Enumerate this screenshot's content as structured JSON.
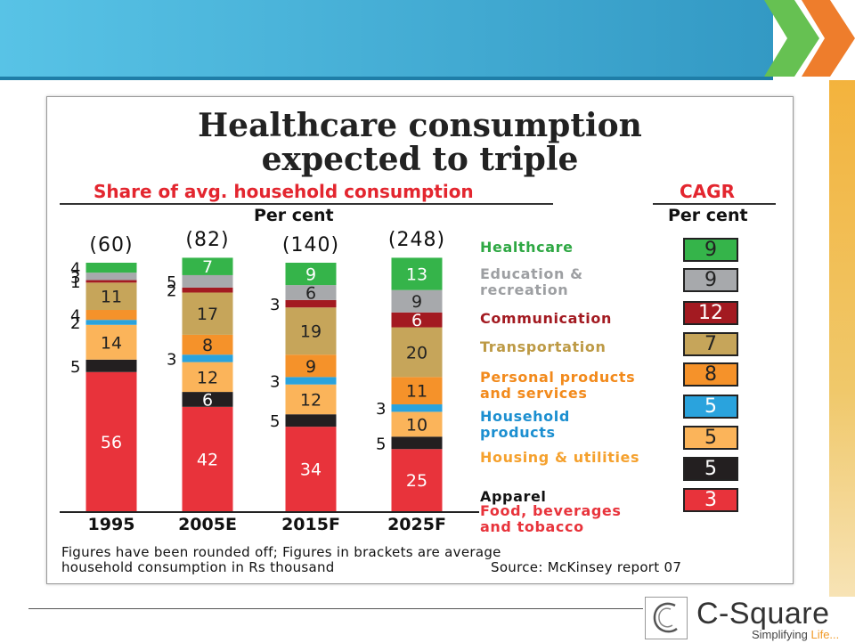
{
  "slide": {
    "logo": {
      "name": "C-Square",
      "tagline_main": "Simplifying ",
      "tagline_accent": "Life..."
    }
  },
  "chart_data": {
    "type": "bar",
    "title_line1": "Healthcare consumption",
    "title_line2": "expected to triple",
    "subtitle": "Share of avg. household consumption",
    "unit": "Per cent",
    "cagr_header": "CAGR",
    "cagr_unit": "Per cent",
    "categories": [
      "1995",
      "2005E",
      "2015F",
      "2025F"
    ],
    "totals": [
      "(60)",
      "(82)",
      "(140)",
      "(248)"
    ],
    "series": [
      {
        "name": "Food, beverages and tobacco",
        "label_lines": [
          "Food, beverages",
          "and tobacco"
        ],
        "values": [
          56,
          42,
          34,
          25
        ],
        "color": "#e8333b",
        "label_color": "#e8333b",
        "text_color": "#ffffff",
        "cagr": 3,
        "cagr_text_color": "#ffffff"
      },
      {
        "name": "Apparel",
        "label_lines": [
          "Apparel"
        ],
        "values": [
          5,
          6,
          5,
          5
        ],
        "color": "#231f20",
        "label_color": "#111111",
        "text_color": "#ffffff",
        "cagr": 5,
        "cagr_text_color": "#ffffff"
      },
      {
        "name": "Housing & utilities",
        "label_lines": [
          "Housing & utilities"
        ],
        "values": [
          14,
          12,
          12,
          10
        ],
        "color": "#fbb45a",
        "label_color": "#f5a12e",
        "text_color": "#222222",
        "cagr": 5,
        "cagr_text_color": "#222222"
      },
      {
        "name": "Household products",
        "label_lines": [
          "Household",
          "products"
        ],
        "values": [
          2,
          3,
          3,
          3
        ],
        "color": "#2aa3dd",
        "label_color": "#1c8fd0",
        "text_color": "#222222",
        "cagr": 5,
        "cagr_text_color": "#ffffff"
      },
      {
        "name": "Personal products and services",
        "label_lines": [
          "Personal products",
          "and services"
        ],
        "values": [
          4,
          8,
          9,
          11
        ],
        "color": "#f5922a",
        "label_color": "#f28a1c",
        "text_color": "#222222",
        "cagr": 8,
        "cagr_text_color": "#222222"
      },
      {
        "name": "Transportation",
        "label_lines": [
          "Transportation"
        ],
        "values": [
          11,
          17,
          19,
          20
        ],
        "color": "#c6a55a",
        "label_color": "#bd9a45",
        "text_color": "#222222",
        "cagr": 7,
        "cagr_text_color": "#222222"
      },
      {
        "name": "Communication",
        "label_lines": [
          "Communication"
        ],
        "values": [
          1,
          2,
          3,
          6
        ],
        "color": "#a31a21",
        "label_color": "#a31a21",
        "text_color": "#ffffff",
        "cagr": 12,
        "cagr_text_color": "#ffffff"
      },
      {
        "name": "Education & recreation",
        "label_lines": [
          "Education &",
          "recreation"
        ],
        "values": [
          3,
          5,
          6,
          9
        ],
        "color": "#a7a9ac",
        "label_color": "#9d9fa2",
        "text_color": "#222222",
        "cagr": 9,
        "cagr_text_color": "#222222"
      },
      {
        "name": "Healthcare",
        "label_lines": [
          "Healthcare"
        ],
        "values": [
          4,
          7,
          9,
          13
        ],
        "color": "#35b44a",
        "label_color": "#2fa844",
        "text_color": "#ffffff",
        "cagr": 9,
        "cagr_text_color": "#222222"
      }
    ],
    "footnote_line1": "Figures have been rounded off; Figures in brackets are average",
    "footnote_line2": "household consumption in Rs thousand",
    "source": "Source: McKinsey report 07"
  }
}
